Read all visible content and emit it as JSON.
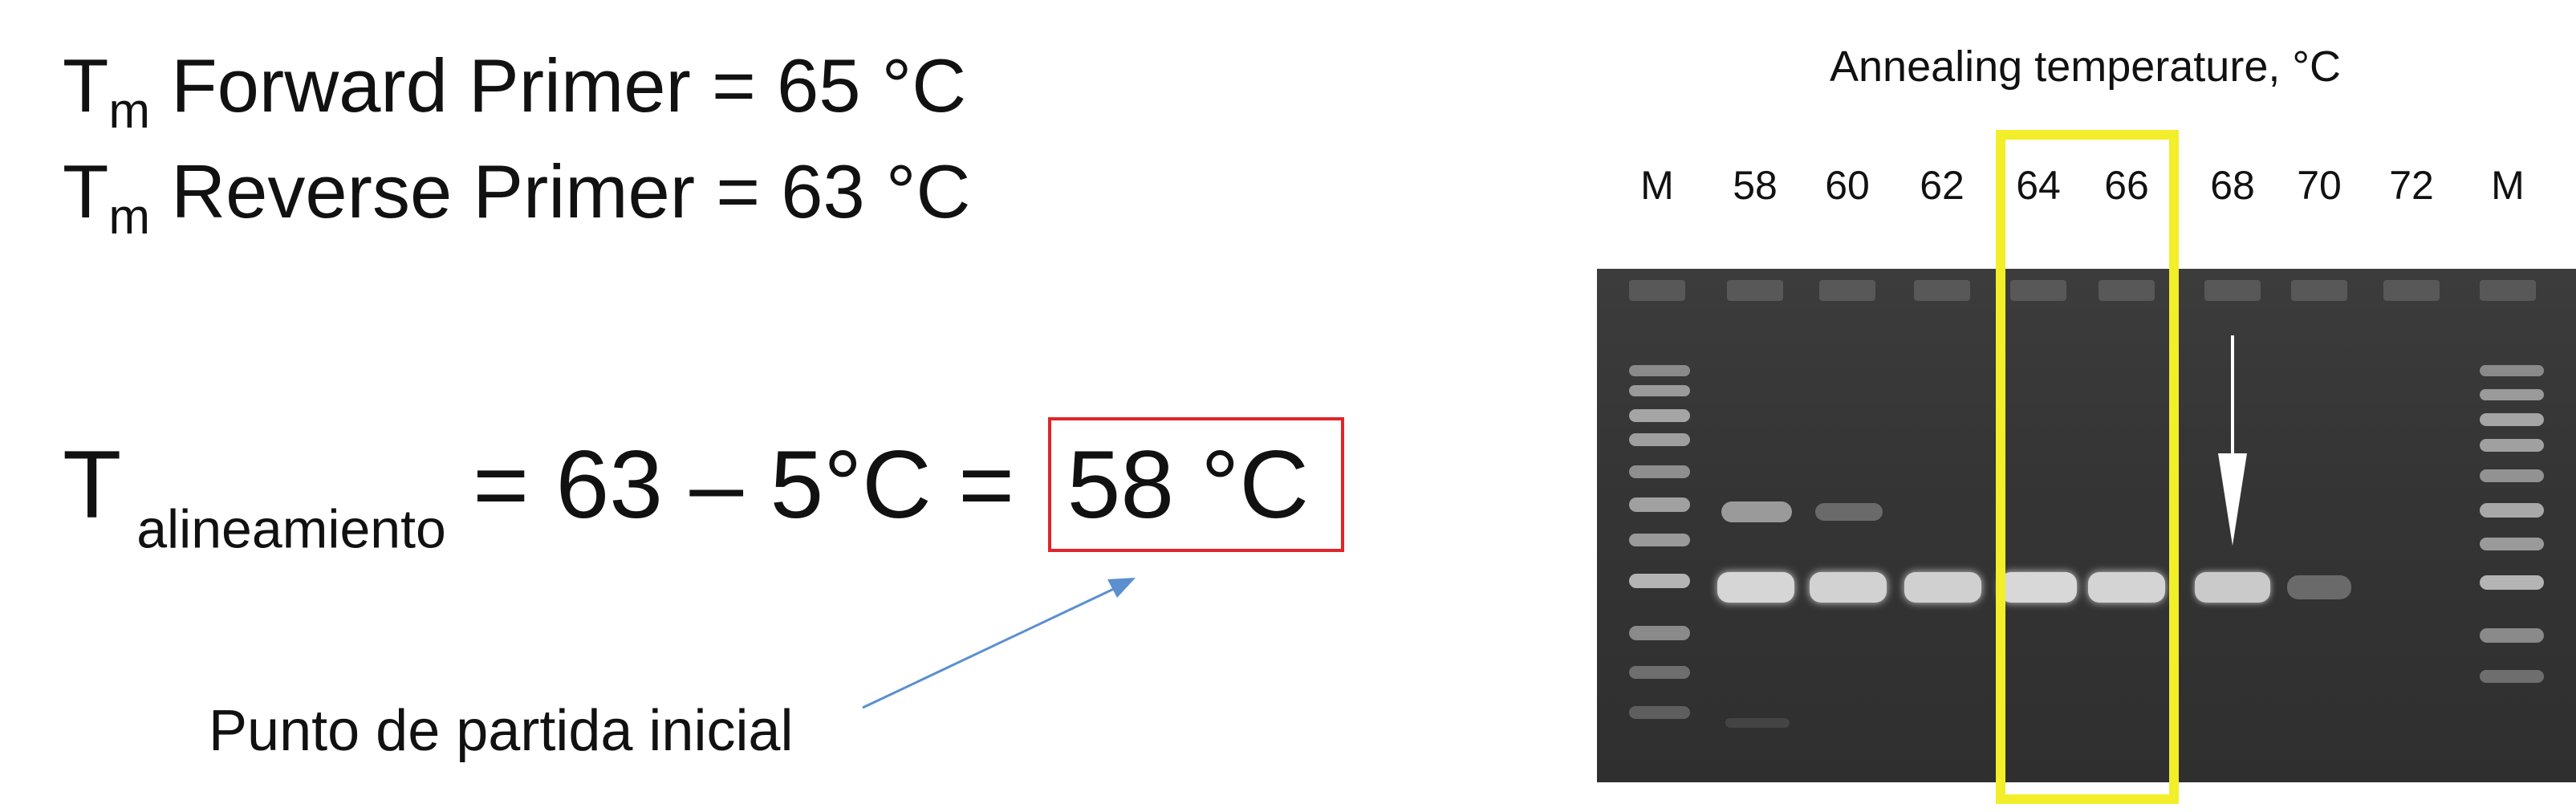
{
  "equations": {
    "forward": {
      "symbol": "T",
      "subscript": "m",
      "text": " Forward Primer = 65 °C"
    },
    "reverse": {
      "symbol": "T",
      "subscript": "m",
      "text": " Reverse Primer =  63 °C"
    },
    "anneal": {
      "symbol": "T",
      "subscript": " alineamiento",
      "text": " =  63 –  5°C = ",
      "result": "58 °C"
    }
  },
  "caption": "Punto de partida inicial",
  "gel": {
    "title": "Annealing temperature, °C",
    "lanes": [
      "M",
      "58",
      "60",
      "62",
      "64",
      "66",
      "68",
      "70",
      "72",
      "M"
    ],
    "highlighted_lanes": [
      "64",
      "66"
    ],
    "arrow_lane": "68",
    "colors": {
      "highlight": "#f2ee2a",
      "result_box": "#e0252a",
      "pointer_arrow": "#5b8fd0"
    }
  }
}
